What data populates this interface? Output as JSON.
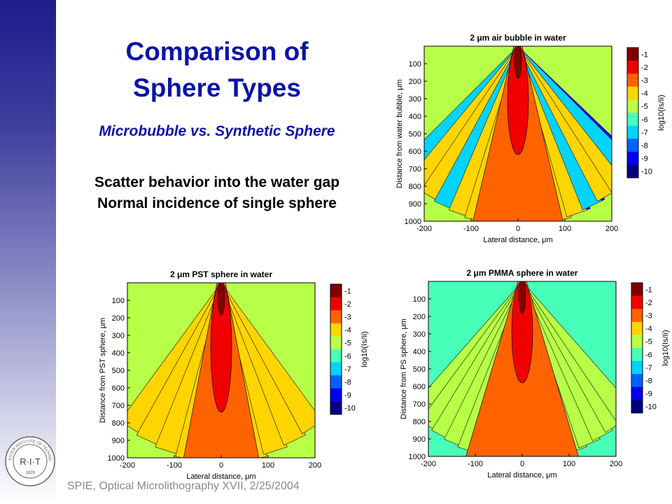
{
  "slide": {
    "title_line1": "Comparison of",
    "title_line2": "Sphere Types",
    "subtitle": "Microbubble vs. Synthetic Sphere",
    "desc_line1": "Scatter behavior into the water gap",
    "desc_line2": "Normal incidence of single sphere",
    "footer": "SPIE, Optical Microlithography XVII, 2/25/2004"
  },
  "logo": {
    "top": "ROCHESTER INSTITUTE OF TECHNOLOGY",
    "center": "R·I·T",
    "year": "1829"
  },
  "colorbar": {
    "ticks": [
      "-1",
      "-2",
      "-3",
      "-4",
      "-5",
      "-6",
      "-7",
      "-8",
      "-9",
      "-10"
    ],
    "label": "log10(Is/Ii)"
  },
  "chart_data": [
    {
      "type": "heatmap",
      "title": "2 μm air bubble in water",
      "xlabel": "Lateral distance, μm",
      "ylabel": "Distance from water bubble, μm",
      "xticks": [
        "-200",
        "-100",
        "0",
        "100",
        "200"
      ],
      "yticks": [
        "100",
        "200",
        "300",
        "400",
        "500",
        "600",
        "700",
        "800",
        "900",
        "1000"
      ],
      "xlim": [
        -200,
        200
      ],
      "ylim": [
        1000,
        0
      ],
      "zlim": [
        -10,
        -1
      ]
    },
    {
      "type": "heatmap",
      "title": "2 μm PST sphere in water",
      "xlabel": "Lateral distance, μm",
      "ylabel": "Distance from PST sphere, μm",
      "xticks": [
        "-200",
        "-100",
        "0",
        "100",
        "200"
      ],
      "yticks": [
        "100",
        "200",
        "300",
        "400",
        "500",
        "600",
        "700",
        "800",
        "900",
        "1000"
      ],
      "xlim": [
        -200,
        200
      ],
      "ylim": [
        1000,
        0
      ],
      "zlim": [
        -10,
        -1
      ]
    },
    {
      "type": "heatmap",
      "title": "2 μm PMMA sphere in water",
      "xlabel": "Lateral distance, μm",
      "ylabel": "Distance from PS sphere, μm",
      "xticks": [
        "-200",
        "-100",
        "0",
        "100",
        "200"
      ],
      "yticks": [
        "100",
        "200",
        "300",
        "400",
        "500",
        "600",
        "700",
        "800",
        "900",
        "1000"
      ],
      "xlim": [
        -200,
        200
      ],
      "ylim": [
        1000,
        0
      ],
      "zlim": [
        -10,
        -1
      ]
    }
  ]
}
